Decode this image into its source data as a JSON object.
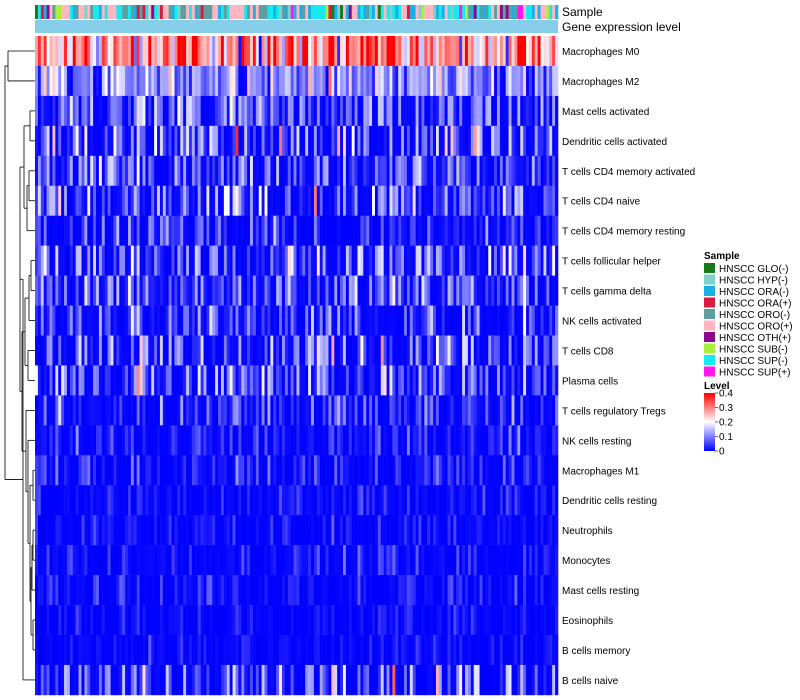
{
  "chart_data": {
    "type": "heatmap",
    "title": "",
    "n_samples": 180,
    "annotation_tracks": [
      "Sample",
      "Gene expression level"
    ],
    "rows": [
      {
        "label": "Macrophages M0",
        "mean": 0.27,
        "spread": 0.11
      },
      {
        "label": "Macrophages M2",
        "mean": 0.11,
        "spread": 0.07
      },
      {
        "label": "Mast cells activated",
        "mean": 0.07,
        "spread": 0.06
      },
      {
        "label": "Dendritic cells activated",
        "mean": 0.08,
        "spread": 0.08
      },
      {
        "label": "T cells CD4 memory activated",
        "mean": 0.06,
        "spread": 0.06
      },
      {
        "label": "T cells CD4 naive",
        "mean": 0.08,
        "spread": 0.08
      },
      {
        "label": "T cells CD4 memory resting",
        "mean": 0.03,
        "spread": 0.05
      },
      {
        "label": "T cells follicular helper",
        "mean": 0.08,
        "spread": 0.06
      },
      {
        "label": "T cells gamma delta",
        "mean": 0.07,
        "spread": 0.06
      },
      {
        "label": "NK cells activated",
        "mean": 0.06,
        "spread": 0.06
      },
      {
        "label": "T cells CD8",
        "mean": 0.07,
        "spread": 0.07
      },
      {
        "label": "Plasma cells",
        "mean": 0.07,
        "spread": 0.07
      },
      {
        "label": "T cells regulatory  Tregs",
        "mean": 0.03,
        "spread": 0.05
      },
      {
        "label": "NK cells resting",
        "mean": 0.02,
        "spread": 0.04
      },
      {
        "label": "Macrophages M1",
        "mean": 0.02,
        "spread": 0.04
      },
      {
        "label": "Dendritic cells resting",
        "mean": 0.01,
        "spread": 0.03
      },
      {
        "label": "Neutrophils",
        "mean": 0.01,
        "spread": 0.03
      },
      {
        "label": "Monocytes",
        "mean": 0.01,
        "spread": 0.03
      },
      {
        "label": "Mast cells resting",
        "mean": 0.01,
        "spread": 0.03
      },
      {
        "label": "Eosinophils",
        "mean": 0.005,
        "spread": 0.02
      },
      {
        "label": "B cells memory",
        "mean": 0.005,
        "spread": 0.02
      },
      {
        "label": "B cells naive",
        "mean": 0.06,
        "spread": 0.09
      }
    ],
    "sample_legend": {
      "title": "Sample",
      "items": [
        {
          "label": "HNSCC GLO(-)",
          "color": "#1a7a1a"
        },
        {
          "label": "HNSCC HYP(-)",
          "color": "#7fd0c8"
        },
        {
          "label": "HNSCC ORA(-)",
          "color": "#1ab0e6"
        },
        {
          "label": "HNSCC ORA(+)",
          "color": "#d81b40"
        },
        {
          "label": "HNSCC ORO(-)",
          "color": "#5f9ea0"
        },
        {
          "label": "HNSCC ORO(+)",
          "color": "#ffb6c1"
        },
        {
          "label": "HNSCC OTH(+)",
          "color": "#8b0a8b"
        },
        {
          "label": "HNSCC SUB(-)",
          "color": "#a8f03c"
        },
        {
          "label": "HNSCC SUP(-)",
          "color": "#18e8f0"
        },
        {
          "label": "HNSCC SUP(+)",
          "color": "#ff18f0"
        }
      ]
    },
    "level_legend": {
      "title": "Level",
      "ticks": [
        "0.4",
        "0.3",
        "0.2",
        "0.1",
        "0"
      ],
      "tick_values": [
        0.4,
        0.3,
        0.2,
        0.1,
        0
      ],
      "range": [
        0,
        0.4
      ],
      "colors": [
        "#0000ff",
        "#ffffff",
        "#ff0000"
      ]
    },
    "gene_expression_color": "#87ceeb"
  }
}
